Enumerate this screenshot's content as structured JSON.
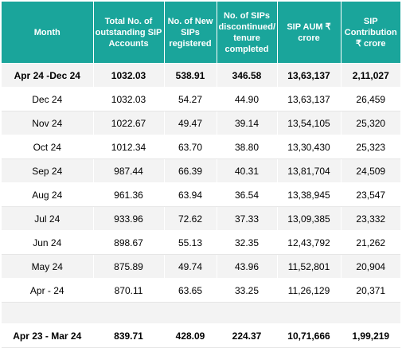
{
  "headers": [
    "Month",
    "Total No. of outstanding SIP Accounts",
    "No. of New SIPs registered",
    "No. of SIPs discontinued/ tenure completed",
    "SIP AUM ₹ crore",
    "SIP Contribution ₹ crore"
  ],
  "rows": [
    [
      "Apr 24 -Dec 24",
      "1032.03",
      "538.91",
      "346.58",
      "13,63,137",
      "2,11,027"
    ],
    [
      "Dec 24",
      "1032.03",
      "54.27",
      "44.90",
      "13,63,137",
      "26,459"
    ],
    [
      "Nov 24",
      "1022.67",
      "49.47",
      "39.14",
      "13,54,105",
      "25,320"
    ],
    [
      "Oct 24",
      "1012.34",
      "63.70",
      "38.80",
      "13,30,430",
      "25,323"
    ],
    [
      "Sep 24",
      "987.44",
      "66.39",
      "40.31",
      "13,81,704",
      "24,509"
    ],
    [
      "Aug 24",
      "961.36",
      "63.94",
      "36.54",
      "13,38,945",
      "23,547"
    ],
    [
      "Jul 24",
      "933.96",
      "72.62",
      "37.33",
      "13,09,385",
      "23,332"
    ],
    [
      "Jun 24",
      "898.67",
      "55.13",
      "32.35",
      "12,43,792",
      "21,262"
    ],
    [
      "May 24",
      "875.89",
      "49.74",
      "43.96",
      "11,52,801",
      "20,904"
    ],
    [
      "Apr - 24",
      "870.11",
      "63.65",
      "33.25",
      "11,26,129",
      "20,371"
    ]
  ],
  "total_row": [
    "Apr 23 - Mar 24",
    "839.71",
    "428.09",
    "224.37",
    "10,71,666",
    "1,99,219"
  ],
  "colors": {
    "header_bg": "#1aa59b",
    "row_shade": "#f3f3f3",
    "row_plain": "#ffffff"
  }
}
